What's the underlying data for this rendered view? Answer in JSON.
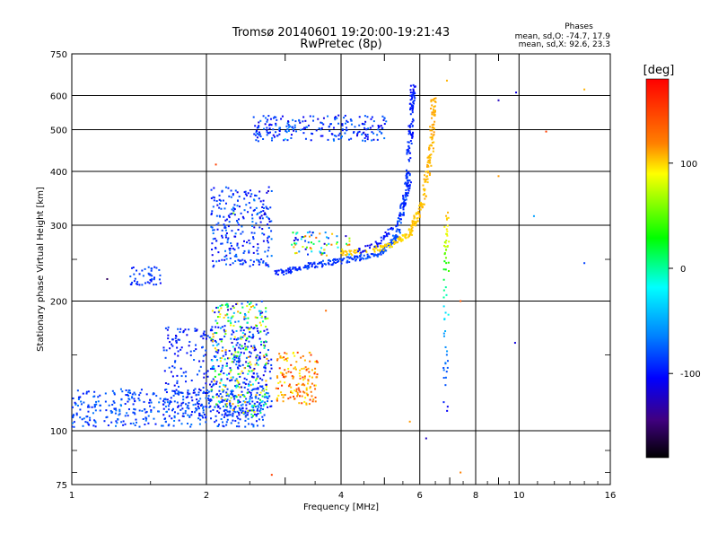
{
  "chart_data": {
    "type": "scatter",
    "title": "Tromsø 20140601 19:20:00-19:21:43",
    "subtitle": "RwPretec (8p)",
    "xlabel": "Frequency [MHz]",
    "ylabel": "Stationary phase Virtual Height [km]",
    "x_scale": "log",
    "y_scale": "log",
    "xlim": [
      1,
      16
    ],
    "ylim": [
      75,
      750
    ],
    "x_ticks": [
      1,
      2,
      4,
      6,
      8,
      10,
      16
    ],
    "y_ticks": [
      75,
      100,
      200,
      300,
      400,
      500,
      600,
      750
    ],
    "x_minor_ticks": [
      3,
      5,
      7,
      9
    ],
    "grid": true,
    "stats": {
      "heading": "Phases",
      "line1": "mean, sd,O: -74.7, 17.9",
      "line2": "mean, sd,X:  92.6, 23.3"
    },
    "colorbar": {
      "label": "[deg]",
      "range": [
        -180,
        180
      ],
      "ticks": [
        100,
        0,
        -100
      ],
      "colormap": "rainbow"
    },
    "clusters": [
      {
        "name_hint": "E-region trace",
        "x": [
          1.0,
          2.75
        ],
        "y": [
          102,
          125
        ],
        "phase": [
          -95,
          -60
        ],
        "count": 420
      },
      {
        "name_hint": "Es spread",
        "x": [
          1.6,
          2.8
        ],
        "y": [
          108,
          175
        ],
        "phase": [
          -110,
          -70
        ],
        "count": 380
      },
      {
        "name_hint": "spread column",
        "x": [
          2.05,
          2.75
        ],
        "y": [
          108,
          200
        ],
        "phase": [
          -120,
          110
        ],
        "count": 330
      },
      {
        "name_hint": "X-mode patch",
        "x": [
          2.85,
          3.55
        ],
        "y": [
          115,
          152
        ],
        "phase": [
          70,
          160
        ],
        "count": 150
      },
      {
        "name_hint": "low F patch",
        "x": [
          1.35,
          1.58
        ],
        "y": [
          218,
          240
        ],
        "phase": [
          -100,
          -70
        ],
        "count": 45
      },
      {
        "name_hint": "F spread",
        "x": [
          2.05,
          2.8
        ],
        "y": [
          240,
          370
        ],
        "phase": [
          -110,
          -60
        ],
        "count": 260
      },
      {
        "name_hint": "upper F echo",
        "x": [
          2.55,
          5.05
        ],
        "y": [
          470,
          540
        ],
        "phase": [
          -110,
          -60
        ],
        "count": 220
      },
      {
        "name_hint": "mixed scatter",
        "x": [
          3.1,
          4.2
        ],
        "y": [
          255,
          290
        ],
        "phase": [
          -120,
          140
        ],
        "count": 70
      }
    ],
    "traces": [
      {
        "name_hint": "O-mode F trace",
        "x": [
          2.85,
          3.4,
          4.2,
          4.9,
          5.35,
          5.6,
          5.72,
          5.8
        ],
        "y": [
          232,
          242,
          250,
          258,
          285,
          360,
          480,
          640
        ],
        "phase": [
          -90,
          -85,
          -80,
          -78,
          -75,
          -80,
          -90,
          -95
        ],
        "count": 360
      },
      {
        "name_hint": "X-mode F trace",
        "x": [
          4.0,
          5.0,
          5.7,
          6.1,
          6.35,
          6.45
        ],
        "y": [
          258,
          266,
          285,
          340,
          440,
          590
        ],
        "phase": [
          90,
          85,
          90,
          95,
          100,
          105
        ],
        "count": 260
      },
      {
        "name_hint": "upper blue trace",
        "x": [
          4.4,
          4.9,
          5.4,
          5.7
        ],
        "y": [
          262,
          275,
          310,
          380
        ],
        "phase": [
          -100,
          -95,
          -90,
          -90
        ],
        "count": 80
      },
      {
        "name_hint": "vertical streak",
        "x": [
          6.85,
          6.9
        ],
        "y": [
          108,
          320
        ],
        "phase": [
          -100,
          100
        ],
        "count": 60
      }
    ],
    "isolated_points": [
      {
        "x": 6.9,
        "y": 650,
        "phase": 100
      },
      {
        "x": 9.0,
        "y": 585,
        "phase": -120
      },
      {
        "x": 9.85,
        "y": 610,
        "phase": -110
      },
      {
        "x": 14.0,
        "y": 620,
        "phase": 100
      },
      {
        "x": 11.5,
        "y": 495,
        "phase": 150
      },
      {
        "x": 9.0,
        "y": 390,
        "phase": 110
      },
      {
        "x": 10.8,
        "y": 315,
        "phase": -50
      },
      {
        "x": 14.0,
        "y": 245,
        "phase": -80
      },
      {
        "x": 9.8,
        "y": 160,
        "phase": -110
      },
      {
        "x": 7.4,
        "y": 200,
        "phase": 140
      },
      {
        "x": 7.4,
        "y": 80,
        "phase": 120
      },
      {
        "x": 6.2,
        "y": 96,
        "phase": -120
      },
      {
        "x": 5.7,
        "y": 105,
        "phase": 110
      },
      {
        "x": 2.8,
        "y": 79,
        "phase": 150
      },
      {
        "x": 2.1,
        "y": 415,
        "phase": 150
      },
      {
        "x": 2.75,
        "y": 360,
        "phase": -120
      },
      {
        "x": 2.3,
        "y": 320,
        "phase": 40
      },
      {
        "x": 1.2,
        "y": 225,
        "phase": -150
      },
      {
        "x": 3.7,
        "y": 190,
        "phase": 130
      },
      {
        "x": 3.0,
        "y": 475,
        "phase": -30
      }
    ]
  }
}
